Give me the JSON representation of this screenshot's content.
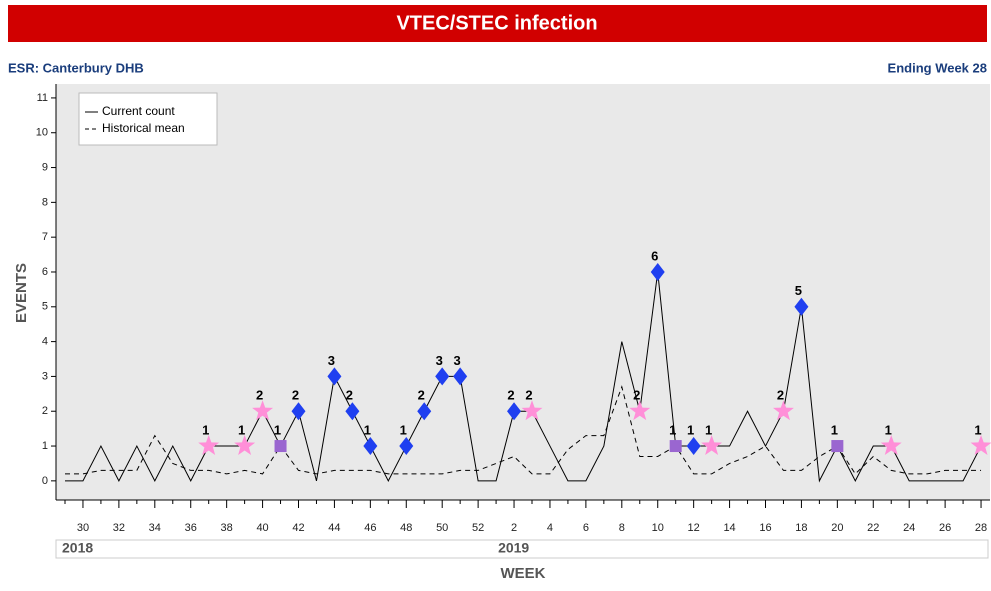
{
  "chart_data": {
    "type": "line",
    "title": "VTEC/STEC infection",
    "subtitle_left": "ESR: Canterbury DHB",
    "subtitle_right": "Ending Week 28",
    "y_label": "EVENTS",
    "x_label": "WEEK",
    "year_labels": [
      "2018",
      "2019"
    ],
    "categories": [
      null,
      "30",
      null,
      "32",
      null,
      "34",
      null,
      "36",
      null,
      "38",
      null,
      "40",
      null,
      "42",
      null,
      "44",
      null,
      "46",
      null,
      "48",
      null,
      "50",
      null,
      "52",
      null,
      "2",
      null,
      "4",
      null,
      "6",
      null,
      "8",
      null,
      "10",
      null,
      "12",
      null,
      "14",
      null,
      "16",
      null,
      "18",
      null,
      "20",
      null,
      "22",
      null,
      "24",
      null,
      "26",
      null,
      "28"
    ],
    "series": [
      {
        "name": "Current count",
        "color": "#000000",
        "dash": false,
        "values": [
          0,
          0,
          1,
          0,
          1,
          0,
          1,
          0,
          1,
          1,
          1,
          2,
          1,
          2,
          0,
          3,
          2,
          1,
          0,
          1,
          2,
          3,
          3,
          0,
          0,
          2,
          2,
          1,
          0,
          0,
          1,
          4,
          2,
          6,
          1,
          1,
          1,
          1,
          2,
          1,
          2,
          5,
          0,
          1,
          0,
          1,
          1,
          0,
          0,
          0,
          0,
          1
        ]
      },
      {
        "name": "Historical mean",
        "color": "#000000",
        "dash": true,
        "values": [
          0.2,
          0.2,
          0.3,
          0.3,
          0.3,
          1.3,
          0.5,
          0.3,
          0.3,
          0.2,
          0.3,
          0.2,
          1.0,
          0.3,
          0.2,
          0.3,
          0.3,
          0.3,
          0.2,
          0.2,
          0.2,
          0.2,
          0.3,
          0.3,
          0.5,
          0.7,
          0.2,
          0.2,
          0.9,
          1.3,
          1.3,
          2.7,
          0.7,
          0.7,
          1.0,
          0.2,
          0.2,
          0.5,
          0.7,
          1.0,
          0.3,
          0.3,
          0.7,
          1.0,
          0.2,
          0.7,
          0.3,
          0.2,
          0.2,
          0.3,
          0.3,
          0.3
        ]
      }
    ],
    "markers": [
      null,
      null,
      null,
      null,
      null,
      null,
      null,
      null,
      "star",
      null,
      "star",
      "star",
      "square",
      "diamond",
      null,
      "diamond",
      "diamond",
      "diamond",
      null,
      "diamond",
      "diamond",
      "diamond",
      "diamond",
      null,
      null,
      "diamond",
      "star",
      null,
      null,
      null,
      null,
      null,
      "star",
      "diamond",
      "square",
      "diamond",
      "star",
      null,
      null,
      null,
      "star",
      "diamond",
      null,
      "square",
      null,
      null,
      "star",
      null,
      null,
      null,
      null,
      "star"
    ],
    "marker_colors": {
      "star": "#ff8fd8",
      "diamond": "#1f3ff0",
      "square": "#9a66d0"
    },
    "ylim": [
      -0.55,
      11.4
    ],
    "yticks": [
      0,
      1,
      2,
      3,
      4,
      5,
      6,
      7,
      8,
      9,
      10,
      11
    ],
    "legend": "upper left"
  }
}
